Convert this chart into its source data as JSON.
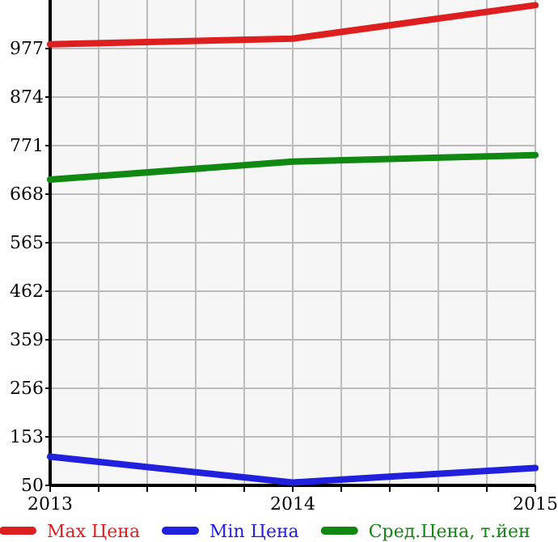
{
  "chart_data": {
    "type": "line",
    "x": [
      2013,
      2014,
      2015
    ],
    "series": [
      {
        "name": "Max Цена",
        "color": "#dd1f1f",
        "values": [
          986,
          998,
          1069
        ]
      },
      {
        "name": "Min Цена",
        "color": "#2020dd",
        "values": [
          111,
          56,
          87
        ]
      },
      {
        "name": "Сред.Цена, т.йен",
        "color": "#118811",
        "values": [
          699,
          737,
          751
        ]
      }
    ],
    "xlim": [
      2013,
      2015
    ],
    "xticks": [
      2013,
      {
        "value": 2013.2,
        "label": null
      },
      {
        "value": 2013.4,
        "label": null
      },
      {
        "value": 2013.6,
        "label": null
      },
      {
        "value": 2013.8,
        "label": null
      },
      2014,
      {
        "value": 2014.2,
        "label": null
      },
      {
        "value": 2014.4,
        "label": null
      },
      {
        "value": 2014.6,
        "label": null
      },
      {
        "value": 2014.8,
        "label": null
      },
      2015
    ],
    "ylim": [
      50,
      1080
    ],
    "yticks": [
      50,
      153,
      256,
      359,
      462,
      565,
      668,
      771,
      874,
      977
    ],
    "grid": true,
    "legend": "bottom",
    "marker": "none",
    "line_style": "solid"
  }
}
